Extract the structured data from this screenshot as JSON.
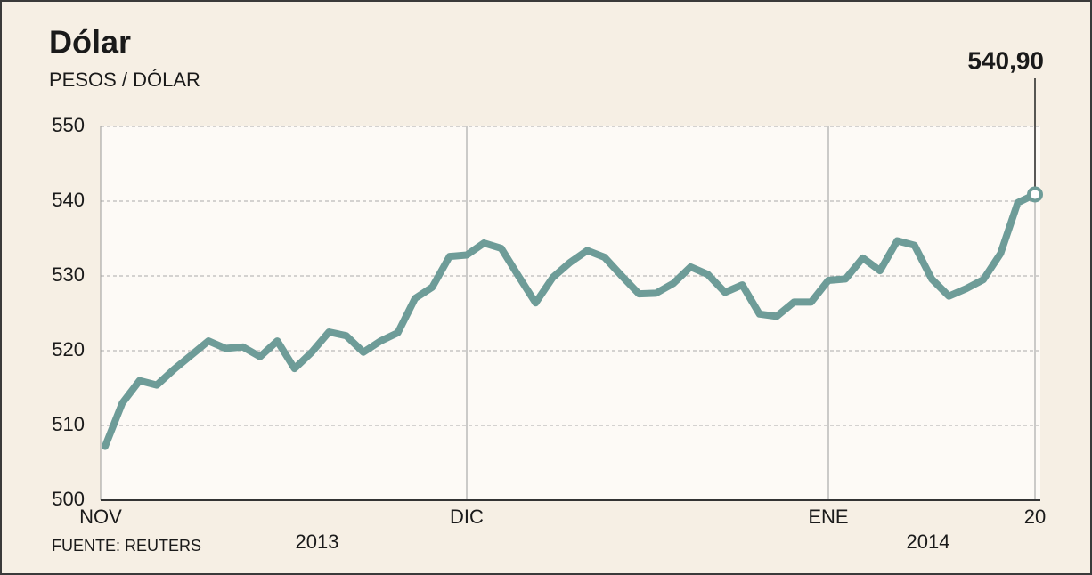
{
  "chart_data": {
    "type": "line",
    "title": "Dólar",
    "subtitle": "PESOS / DÓLAR",
    "source": "FUENTE: REUTERS",
    "year_labels": [
      "2013",
      "2014"
    ],
    "categories": [
      "NOV",
      null,
      null,
      null,
      null,
      null,
      null,
      null,
      null,
      null,
      null,
      null,
      null,
      null,
      null,
      null,
      null,
      null,
      null,
      null,
      null,
      "DIC",
      null,
      null,
      null,
      null,
      null,
      null,
      null,
      null,
      null,
      null,
      null,
      null,
      null,
      null,
      null,
      null,
      null,
      null,
      null,
      null,
      "ENE",
      null,
      null,
      null,
      null,
      null,
      null,
      null,
      null,
      null,
      null,
      null,
      "20"
    ],
    "series": [
      {
        "name": "Dólar",
        "color": "#6e9c98",
        "values": [
          507.2,
          513,
          516,
          515.4,
          517.5,
          519.4,
          521.3,
          520.3,
          520.5,
          519.2,
          521.3,
          517.6,
          519.8,
          522.5,
          522,
          519.8,
          521.3,
          522.4,
          527,
          528.5,
          532.6,
          532.8,
          534.4,
          533.7,
          530,
          526.4,
          529.8,
          531.8,
          533.4,
          532.5,
          530,
          527.6,
          527.7,
          529,
          531.2,
          530.2,
          527.8,
          528.8,
          524.9,
          524.6,
          526.5,
          526.5,
          529.4,
          529.6,
          532.4,
          530.7,
          534.7,
          534.1,
          529.6,
          527.3,
          528.3,
          529.5,
          533,
          539.8,
          540.9
        ],
        "value_labels": [
          null,
          null,
          null,
          null,
          null,
          null,
          null,
          null,
          null,
          null,
          null,
          null,
          null,
          null,
          null,
          null,
          null,
          null,
          null,
          null,
          null,
          null,
          null,
          null,
          null,
          null,
          null,
          null,
          null,
          null,
          null,
          null,
          null,
          null,
          null,
          null,
          null,
          null,
          null,
          null,
          null,
          null,
          null,
          null,
          null,
          null,
          null,
          null,
          null,
          null,
          null,
          null,
          null,
          null,
          "540,90"
        ]
      }
    ],
    "ylim": [
      500,
      550
    ],
    "yticks": [
      500,
      510,
      520,
      530,
      540,
      550
    ],
    "grid": true
  }
}
